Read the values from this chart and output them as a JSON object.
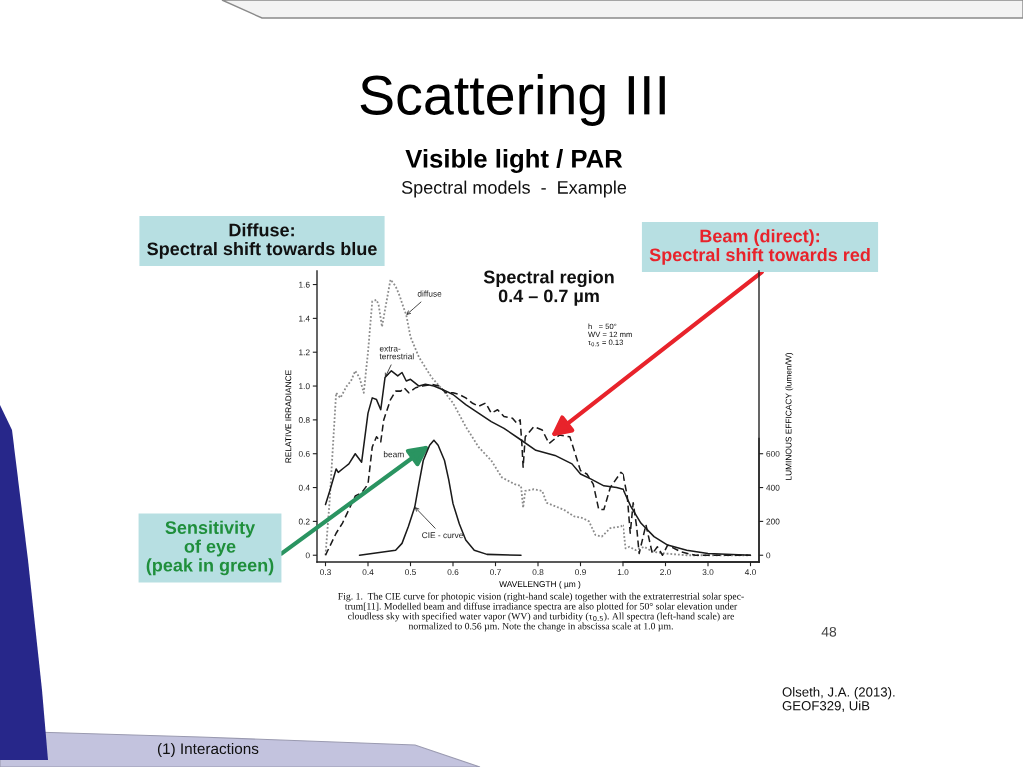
{
  "chart_data": [
    {
      "type": "line",
      "title": "Scattering III",
      "subtitle": "Visible light / PAR",
      "xlabel": "WAVELENGTH ( µm )",
      "ylabel": "RELATIVE IRRADIANCE",
      "y2label": "LUMINOUS EFFICACY (lumen/W)",
      "xlim": [
        0.28,
        1.32
      ],
      "xticks": [
        0.3,
        0.4,
        0.5,
        0.6,
        0.7,
        0.8,
        0.9,
        {
          "value": 1,
          "label": "1.0"
        }
      ],
      "ylim": [
        -0.04,
        1.68
      ],
      "yticks": [
        0,
        0.2,
        0.4,
        0.6,
        0.8,
        {
          "value": 1,
          "label": "1.0"
        },
        1.2,
        1.4,
        1.6
      ],
      "y2lim": [
        -40,
        1680
      ],
      "y2ticks": [
        0,
        200,
        400,
        600
      ],
      "series": [
        {
          "name": "diffuse",
          "color": "#8c8c8c",
          "line_style": "dotted",
          "x": [
            0.3,
            0.31,
            0.325,
            0.335,
            0.35,
            0.36,
            0.37,
            0.38,
            0.39,
            0.4,
            0.41,
            0.42,
            0.425,
            0.433,
            0.44,
            0.453,
            0.465,
            0.475,
            0.48,
            0.49,
            0.5,
            0.52,
            0.55,
            0.575,
            0.6,
            0.63,
            0.66,
            0.69,
            0.715,
            0.745,
            0.76,
            0.765,
            0.77,
            0.79,
            0.81,
            0.82,
            0.84,
            0.86,
            0.885,
            0.905,
            0.92,
            0.935,
            0.95,
            0.97,
            0.995,
            1.0
          ],
          "values": [
            0.0,
            0.33,
            0.96,
            0.93,
            1.0,
            1.03,
            1.09,
            1.05,
            0.96,
            1.2,
            1.5,
            1.51,
            1.48,
            1.35,
            1.45,
            1.63,
            1.59,
            1.53,
            1.49,
            1.42,
            1.29,
            1.17,
            1.05,
            0.98,
            0.9,
            0.76,
            0.64,
            0.56,
            0.46,
            0.42,
            0.41,
            0.28,
            0.38,
            0.39,
            0.38,
            0.31,
            0.29,
            0.27,
            0.23,
            0.22,
            0.2,
            0.12,
            0.11,
            0.16,
            0.17,
            0.18
          ]
        },
        {
          "name": "extra-\nterrestrial",
          "color": "#1a1a1a",
          "line_style": "solid",
          "x": [
            0.3,
            0.31,
            0.325,
            0.33,
            0.345,
            0.355,
            0.37,
            0.385,
            0.4,
            0.41,
            0.42,
            0.43,
            0.44,
            0.455,
            0.47,
            0.48,
            0.49,
            0.5,
            0.52,
            0.535,
            0.555,
            0.575,
            0.6,
            0.63,
            0.66,
            0.69,
            0.72,
            0.755,
            0.795,
            0.84,
            0.88,
            0.9,
            0.925,
            0.955,
            0.985,
            1.0
          ],
          "values": [
            0.3,
            0.38,
            0.51,
            0.49,
            0.52,
            0.54,
            0.6,
            0.55,
            0.84,
            0.93,
            0.92,
            0.86,
            1.05,
            1.09,
            1.06,
            1.08,
            1.03,
            1.04,
            1.0,
            1.01,
            1.0,
            0.98,
            0.95,
            0.89,
            0.84,
            0.79,
            0.75,
            0.69,
            0.62,
            0.59,
            0.54,
            0.48,
            0.45,
            0.41,
            0.4,
            0.39
          ]
        },
        {
          "name": "beam",
          "color": "#1a1a1a",
          "line_style": "dashed",
          "x": [
            0.3,
            0.325,
            0.34,
            0.355,
            0.37,
            0.385,
            0.4,
            0.41,
            0.42,
            0.43,
            0.437,
            0.453,
            0.465,
            0.477,
            0.485,
            0.496,
            0.512,
            0.528,
            0.55,
            0.567,
            0.583,
            0.6,
            0.615,
            0.63,
            0.645,
            0.66,
            0.677,
            0.69,
            0.705,
            0.72,
            0.74,
            0.75,
            0.758,
            0.762,
            0.765,
            0.77,
            0.79,
            0.81,
            0.826,
            0.85,
            0.875,
            0.9,
            0.915,
            0.93,
            0.943,
            0.955,
            0.97,
            0.995,
            1.0
          ],
          "values": [
            0.0,
            0.13,
            0.19,
            0.27,
            0.35,
            0.37,
            0.42,
            0.64,
            0.7,
            0.67,
            0.8,
            0.92,
            0.97,
            0.97,
            0.99,
            0.96,
            0.99,
            1.0,
            1.01,
            1.0,
            0.96,
            0.96,
            0.95,
            0.93,
            0.9,
            0.88,
            0.9,
            0.84,
            0.86,
            0.82,
            0.81,
            0.78,
            0.8,
            0.66,
            0.52,
            0.7,
            0.76,
            0.74,
            0.66,
            0.71,
            0.7,
            0.5,
            0.48,
            0.42,
            0.27,
            0.27,
            0.4,
            0.49,
            0.48
          ]
        },
        {
          "name": "CIE - curve",
          "color": "#1a1a1a",
          "line_style": "solid",
          "axis": "y2",
          "x": [
            0.38,
            0.465,
            0.48,
            0.495,
            0.51,
            0.52,
            0.53,
            0.545,
            0.555,
            0.565,
            0.58,
            0.59,
            0.6,
            0.615,
            0.63,
            0.65,
            0.68,
            0.76
          ],
          "values": [
            0,
            30,
            70,
            170,
            285,
            425,
            560,
            650,
            680,
            650,
            560,
            445,
            305,
            185,
            90,
            30,
            5,
            0
          ]
        }
      ],
      "annotations": [
        "Spectral models  -  Example",
        "Diffuse:\nSpectral shift towards blue",
        {
          "text": "Beam (direct):\nSpectral shift towards red",
          "x": 0.83,
          "y": 0.7
        },
        "Spectral region\n0.4 – 0.7 µm",
        {
          "text": "Sensitivity\nof eye\n(peak in green)",
          "x": 0.545,
          "y": 0.65
        },
        "h   = 50°\nWV = 12 mm\nτ$_{0.5}$ = 0.13",
        "Fig. 1.  The CIE curve for photopic vision (right-hand scale) together with the extraterrestrial solar spec-\ntrum[11]. Modelled beam and diffuse irradiance spectra are also plotted for 50° solar elevation under\ncloudless sky with specified water vapor (WV) and turbidity (τ$_{0.5}$). All spectra (left-hand scale) are\nnormalized to 0.56 µm. Note the change in abscissa scale at 1.0 µm.",
        "48",
        "Olseth, J.A. (2013).\nGEOF329, UiB",
        "(1) Interactions"
      ]
    },
    {
      "type": "line",
      "tick_labels": "x",
      "xlim": [
        1.0,
        4.2
      ],
      "xticks": [
        {
          "value": 2,
          "label": "2.0"
        },
        {
          "value": 3,
          "label": "3.0"
        },
        {
          "value": 4,
          "label": "4.0"
        }
      ],
      "ylim": [
        -0.04,
        1.68
      ],
      "series": [
        {
          "color": "#8c8c8c",
          "line_style": "dotted",
          "x": [
            1.0,
            1.06,
            1.15,
            1.3,
            1.5,
            1.7,
            2.0,
            2.5,
            3.0,
            4.0
          ],
          "values": [
            0.18,
            0.04,
            0.05,
            0.03,
            0.05,
            0.02,
            0.01,
            0.0,
            0.0,
            0.0
          ]
        },
        {
          "color": "#1a1a1a",
          "line_style": "solid",
          "x": [
            1.0,
            1.18,
            1.42,
            1.73,
            2.05,
            2.5,
            3.0,
            4.0
          ],
          "values": [
            0.39,
            0.29,
            0.19,
            0.11,
            0.06,
            0.03,
            0.01,
            0.0
          ]
        },
        {
          "color": "#1a1a1a",
          "line_style": "dashed",
          "x": [
            1.0,
            1.1,
            1.17,
            1.24,
            1.32,
            1.38,
            1.54,
            1.69,
            1.81,
            1.93,
            2.05,
            2.36,
            2.7,
            3.0,
            4.0
          ],
          "values": [
            0.48,
            0.35,
            0.13,
            0.31,
            0.17,
            0.01,
            0.18,
            0.01,
            0.05,
            0.0,
            0.06,
            0.02,
            0.0,
            0.0,
            0.0
          ]
        }
      ]
    }
  ]
}
